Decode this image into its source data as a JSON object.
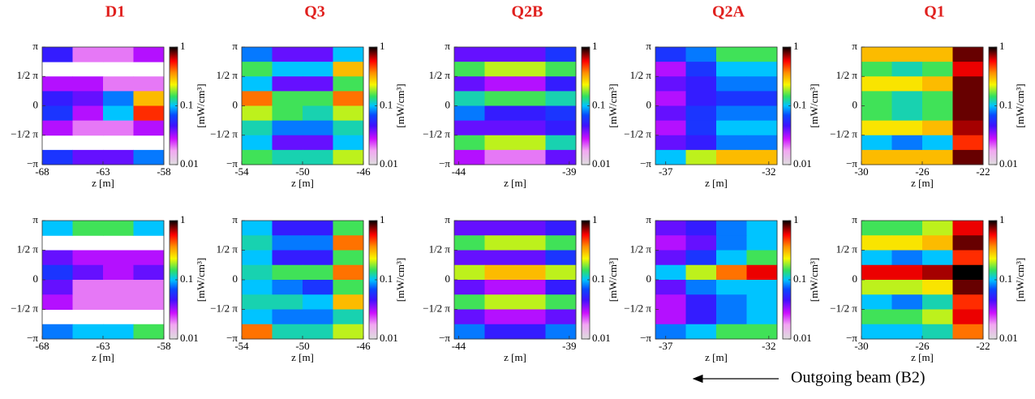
{
  "chart_data": [
    {
      "type": "heatmap",
      "title": "D1",
      "xlabel": "z [m]",
      "xlim": [
        -68,
        -58
      ],
      "xticks": [
        -68,
        -63,
        -58
      ],
      "ylim": [
        -3.1416,
        3.1416
      ],
      "yticks": [
        {
          "value": -3.1416,
          "label": "−π"
        },
        {
          "value": -1.5708,
          "label": "−1/2 π"
        },
        0,
        {
          "value": 1.5708,
          "label": "1/2 π"
        },
        {
          "value": 3.1416,
          "label": "π"
        }
      ],
      "colorbar": {
        "label": "[mW/cm³]",
        "lim": [
          0.01,
          1
        ],
        "ticks": [
          0.01,
          0.1,
          1
        ],
        "log": true
      },
      "values": [
        [
          0.05,
          0.02,
          0.02,
          0.03
        ],
        [
          null,
          null,
          null,
          null
        ],
        [
          0.03,
          0.03,
          0.02,
          0.02
        ],
        [
          0.05,
          0.04,
          0.08,
          0.3
        ],
        [
          0.06,
          0.03,
          0.1,
          0.5
        ],
        [
          0.03,
          0.02,
          0.02,
          0.03
        ],
        [
          null,
          null,
          null,
          null
        ],
        [
          0.06,
          0.04,
          0.04,
          0.08
        ]
      ]
    },
    {
      "type": "heatmap",
      "title": "Q3",
      "xlabel": "z [m]",
      "xlim": [
        -54,
        -46
      ],
      "xticks": [
        -54,
        -50,
        -46
      ],
      "ylim": [
        -3.1416,
        3.1416
      ],
      "yticks": [
        {
          "value": -3.1416,
          "label": "−π"
        },
        {
          "value": -1.5708,
          "label": "−1/2 π"
        },
        0,
        {
          "value": 1.5708,
          "label": "1/2 π"
        },
        {
          "value": 3.1416,
          "label": "π"
        }
      ],
      "colorbar": {
        "label": "[mW/cm³]",
        "lim": [
          0.01,
          1
        ],
        "ticks": [
          0.01,
          0.1,
          1
        ],
        "log": true
      },
      "values": [
        [
          0.08,
          0.04,
          0.04,
          0.1
        ],
        [
          0.15,
          0.1,
          0.1,
          0.3
        ],
        [
          0.1,
          0.04,
          0.04,
          0.15
        ],
        [
          0.4,
          0.15,
          0.15,
          0.4
        ],
        [
          0.2,
          0.15,
          0.12,
          0.2
        ],
        [
          0.12,
          0.08,
          0.08,
          0.12
        ],
        [
          0.1,
          0.04,
          0.04,
          0.1
        ],
        [
          0.15,
          0.12,
          0.12,
          0.2
        ]
      ]
    },
    {
      "type": "heatmap",
      "title": "Q2B",
      "xlabel": "z [m]",
      "xlim": [
        -44.2,
        -38.7
      ],
      "xticks": [
        -44,
        -39
      ],
      "ylim": [
        -3.1416,
        3.1416
      ],
      "yticks": [
        {
          "value": -3.1416,
          "label": "−π"
        },
        {
          "value": -1.5708,
          "label": "−1/2 π"
        },
        0,
        {
          "value": 1.5708,
          "label": "1/2 π"
        },
        {
          "value": 3.1416,
          "label": "π"
        }
      ],
      "colorbar": {
        "label": "[mW/cm³]",
        "lim": [
          0.01,
          1
        ],
        "ticks": [
          0.01,
          0.1,
          1
        ],
        "log": true
      },
      "values": [
        [
          0.04,
          0.04,
          0.04,
          0.06
        ],
        [
          0.15,
          0.2,
          0.2,
          0.15
        ],
        [
          0.04,
          0.03,
          0.03,
          0.05
        ],
        [
          0.12,
          0.15,
          0.15,
          0.12
        ],
        [
          0.08,
          0.05,
          0.05,
          0.06
        ],
        [
          0.04,
          0.04,
          0.04,
          0.05
        ],
        [
          0.15,
          0.2,
          0.2,
          0.12
        ],
        [
          0.03,
          0.02,
          0.02,
          0.04
        ]
      ]
    },
    {
      "type": "heatmap",
      "title": "Q2A",
      "xlabel": "z [m]",
      "xlim": [
        -37.5,
        -31.6
      ],
      "xticks": [
        -37,
        -32
      ],
      "ylim": [
        -3.1416,
        3.1416
      ],
      "yticks": [
        {
          "value": -3.1416,
          "label": "−π"
        },
        {
          "value": -1.5708,
          "label": "−1/2 π"
        },
        0,
        {
          "value": 1.5708,
          "label": "1/2 π"
        },
        {
          "value": 3.1416,
          "label": "π"
        }
      ],
      "colorbar": {
        "label": "[mW/cm³]",
        "lim": [
          0.01,
          1
        ],
        "ticks": [
          0.01,
          0.1,
          1
        ],
        "log": true
      },
      "values": [
        [
          0.06,
          0.08,
          0.15,
          0.15
        ],
        [
          0.03,
          0.06,
          0.1,
          0.1
        ],
        [
          0.04,
          0.05,
          0.08,
          0.08
        ],
        [
          0.03,
          0.05,
          0.06,
          0.06
        ],
        [
          0.04,
          0.06,
          0.08,
          0.08
        ],
        [
          0.03,
          0.06,
          0.1,
          0.1
        ],
        [
          0.04,
          0.05,
          0.08,
          0.08
        ],
        [
          0.1,
          0.2,
          0.3,
          0.3
        ]
      ]
    },
    {
      "type": "heatmap",
      "title": "Q1",
      "xlabel": "z [m]",
      "xlim": [
        -30,
        -22
      ],
      "xticks": [
        -30,
        -26,
        -22
      ],
      "ylim": [
        -3.1416,
        3.1416
      ],
      "yticks": [
        {
          "value": -3.1416,
          "label": "−π"
        },
        {
          "value": -1.5708,
          "label": "−1/2 π"
        },
        0,
        {
          "value": 1.5708,
          "label": "1/2 π"
        },
        {
          "value": 3.1416,
          "label": "π"
        }
      ],
      "colorbar": {
        "label": "[mW/cm³]",
        "lim": [
          0.01,
          1
        ],
        "ticks": [
          0.01,
          0.1,
          1
        ],
        "log": true
      },
      "values": [
        [
          0.3,
          0.3,
          0.3,
          0.8
        ],
        [
          0.15,
          0.12,
          0.15,
          0.6
        ],
        [
          0.25,
          0.25,
          0.3,
          0.8
        ],
        [
          0.15,
          0.12,
          0.15,
          0.8
        ],
        [
          0.15,
          0.12,
          0.15,
          0.8
        ],
        [
          0.25,
          0.25,
          0.3,
          0.7
        ],
        [
          0.1,
          0.08,
          0.1,
          0.5
        ],
        [
          0.3,
          0.3,
          0.3,
          0.8
        ]
      ]
    },
    {
      "type": "heatmap",
      "xlabel": "z [m]",
      "xlim": [
        -68,
        -58
      ],
      "xticks": [
        -68,
        -63,
        -58
      ],
      "ylim": [
        -3.1416,
        3.1416
      ],
      "yticks": [
        {
          "value": -3.1416,
          "label": "−π"
        },
        {
          "value": -1.5708,
          "label": "−1/2 π"
        },
        0,
        {
          "value": 1.5708,
          "label": "1/2 π"
        },
        {
          "value": 3.1416,
          "label": "π"
        }
      ],
      "colorbar": {
        "label": "[mW/cm³]",
        "lim": [
          0.01,
          1
        ],
        "ticks": [
          0.01,
          0.1,
          1
        ],
        "log": true
      },
      "values": [
        [
          0.1,
          0.15,
          0.15,
          0.1
        ],
        [
          null,
          null,
          null,
          null
        ],
        [
          0.04,
          0.03,
          0.03,
          0.03
        ],
        [
          0.06,
          0.04,
          0.03,
          0.04
        ],
        [
          0.04,
          0.02,
          0.02,
          0.02
        ],
        [
          0.03,
          0.02,
          0.02,
          0.02
        ],
        [
          null,
          null,
          null,
          null
        ],
        [
          0.08,
          0.1,
          0.1,
          0.15
        ]
      ]
    },
    {
      "type": "heatmap",
      "xlabel": "z [m]",
      "xlim": [
        -54,
        -46
      ],
      "xticks": [
        -54,
        -50,
        -46
      ],
      "ylim": [
        -3.1416,
        3.1416
      ],
      "yticks": [
        {
          "value": -3.1416,
          "label": "−π"
        },
        {
          "value": -1.5708,
          "label": "−1/2 π"
        },
        0,
        {
          "value": 1.5708,
          "label": "1/2 π"
        },
        {
          "value": 3.1416,
          "label": "π"
        }
      ],
      "colorbar": {
        "label": "[mW/cm³]",
        "lim": [
          0.01,
          1
        ],
        "ticks": [
          0.01,
          0.1,
          1
        ],
        "log": true
      },
      "values": [
        [
          0.1,
          0.05,
          0.05,
          0.15
        ],
        [
          0.12,
          0.08,
          0.08,
          0.4
        ],
        [
          0.1,
          0.05,
          0.05,
          0.15
        ],
        [
          0.12,
          0.15,
          0.15,
          0.4
        ],
        [
          0.1,
          0.08,
          0.06,
          0.15
        ],
        [
          0.12,
          0.12,
          0.1,
          0.3
        ],
        [
          0.1,
          0.08,
          0.08,
          0.12
        ],
        [
          0.4,
          0.12,
          0.12,
          0.2
        ]
      ]
    },
    {
      "type": "heatmap",
      "xlabel": "z [m]",
      "xlim": [
        -44.2,
        -38.7
      ],
      "xticks": [
        -44,
        -39
      ],
      "ylim": [
        -3.1416,
        3.1416
      ],
      "yticks": [
        {
          "value": -3.1416,
          "label": "−π"
        },
        {
          "value": -1.5708,
          "label": "−1/2 π"
        },
        0,
        {
          "value": 1.5708,
          "label": "1/2 π"
        },
        {
          "value": 3.1416,
          "label": "π"
        }
      ],
      "colorbar": {
        "label": "[mW/cm³]",
        "lim": [
          0.01,
          1
        ],
        "ticks": [
          0.01,
          0.1,
          1
        ],
        "log": true
      },
      "values": [
        [
          0.04,
          0.04,
          0.04,
          0.05
        ],
        [
          0.15,
          0.2,
          0.2,
          0.15
        ],
        [
          0.04,
          0.04,
          0.04,
          0.06
        ],
        [
          0.2,
          0.3,
          0.3,
          0.2
        ],
        [
          0.04,
          0.03,
          0.03,
          0.05
        ],
        [
          0.15,
          0.2,
          0.2,
          0.15
        ],
        [
          0.04,
          0.03,
          0.03,
          0.04
        ],
        [
          0.08,
          0.05,
          0.05,
          0.08
        ]
      ]
    },
    {
      "type": "heatmap",
      "xlabel": "z [m]",
      "xlim": [
        -37.5,
        -31.6
      ],
      "xticks": [
        -37,
        -32
      ],
      "ylim": [
        -3.1416,
        3.1416
      ],
      "yticks": [
        {
          "value": -3.1416,
          "label": "−π"
        },
        {
          "value": -1.5708,
          "label": "−1/2 π"
        },
        0,
        {
          "value": 1.5708,
          "label": "1/2 π"
        },
        {
          "value": 3.1416,
          "label": "π"
        }
      ],
      "colorbar": {
        "label": "[mW/cm³]",
        "lim": [
          0.01,
          1
        ],
        "ticks": [
          0.01,
          0.1,
          1
        ],
        "log": true
      },
      "values": [
        [
          0.04,
          0.05,
          0.08,
          0.1
        ],
        [
          0.03,
          0.04,
          0.08,
          0.1
        ],
        [
          0.04,
          0.06,
          0.1,
          0.15
        ],
        [
          0.1,
          0.2,
          0.4,
          0.6
        ],
        [
          0.04,
          0.08,
          0.1,
          0.1
        ],
        [
          0.03,
          0.05,
          0.08,
          0.1
        ],
        [
          0.03,
          0.05,
          0.08,
          0.1
        ],
        [
          0.08,
          0.1,
          0.15,
          0.15
        ]
      ]
    },
    {
      "type": "heatmap",
      "xlabel": "z [m]",
      "xlim": [
        -30,
        -22
      ],
      "xticks": [
        -30,
        -26,
        -22
      ],
      "ylim": [
        -3.1416,
        3.1416
      ],
      "yticks": [
        {
          "value": -3.1416,
          "label": "−π"
        },
        {
          "value": -1.5708,
          "label": "−1/2 π"
        },
        0,
        {
          "value": 1.5708,
          "label": "1/2 π"
        },
        {
          "value": 3.1416,
          "label": "π"
        }
      ],
      "colorbar": {
        "label": "[mW/cm³]",
        "lim": [
          0.01,
          1
        ],
        "ticks": [
          0.01,
          0.1,
          1
        ],
        "log": true
      },
      "values": [
        [
          0.15,
          0.15,
          0.2,
          0.6
        ],
        [
          0.25,
          0.25,
          0.3,
          0.8
        ],
        [
          0.1,
          0.08,
          0.1,
          0.5
        ],
        [
          0.6,
          0.6,
          0.7,
          1
        ],
        [
          0.2,
          0.2,
          0.25,
          0.8
        ],
        [
          0.1,
          0.08,
          0.12,
          0.5
        ],
        [
          0.15,
          0.15,
          0.2,
          0.6
        ],
        [
          0.1,
          0.1,
          0.12,
          0.4
        ]
      ]
    }
  ],
  "annotation": "Outgoing beam (B2)"
}
